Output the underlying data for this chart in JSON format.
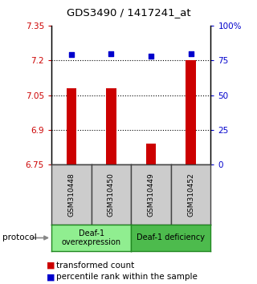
{
  "title": "GDS3490 / 1417241_at",
  "samples": [
    "GSM310448",
    "GSM310450",
    "GSM310449",
    "GSM310452"
  ],
  "red_values": [
    7.08,
    7.08,
    6.84,
    7.2
  ],
  "blue_values": [
    79,
    80,
    78,
    80
  ],
  "ylim_left": [
    6.75,
    7.35
  ],
  "ylim_right": [
    0,
    100
  ],
  "yticks_left": [
    6.75,
    6.9,
    7.05,
    7.2,
    7.35
  ],
  "ytick_labels_left": [
    "6.75",
    "6.9",
    "7.05",
    "7.2",
    "7.35"
  ],
  "yticks_right": [
    0,
    25,
    50,
    75,
    100
  ],
  "ytick_labels_right": [
    "0",
    "25",
    "50",
    "75",
    "100%"
  ],
  "dotted_yticks": [
    6.9,
    7.05,
    7.2
  ],
  "bar_color": "#cc0000",
  "dot_color": "#0000cc",
  "bar_width": 0.25,
  "groups": [
    {
      "label": "Deaf-1\noverexpression",
      "color": "#90ee90"
    },
    {
      "label": "Deaf-1 deficiency",
      "color": "#4dbb4d"
    }
  ],
  "legend_red_label": "transformed count",
  "legend_blue_label": "percentile rank within the sample",
  "protocol_label": "protocol",
  "left_tick_color": "#cc0000",
  "right_tick_color": "#0000cc",
  "sample_box_bg": "#cccccc",
  "sample_box_border": "#444444"
}
